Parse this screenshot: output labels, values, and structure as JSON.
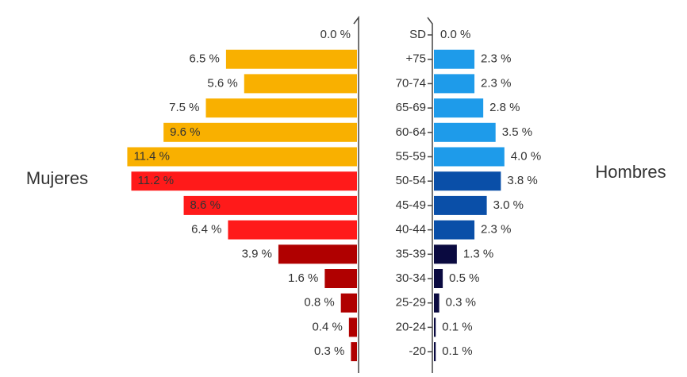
{
  "chart_data": {
    "type": "pyramid",
    "categories": [
      "SD",
      "+75",
      "70-74",
      "65-69",
      "60-64",
      "55-59",
      "50-54",
      "45-49",
      "40-44",
      "35-39",
      "30-34",
      "25-29",
      "20-24",
      "-20"
    ],
    "series": [
      {
        "name": "Mujeres",
        "side": "left",
        "values": [
          0.0,
          6.5,
          5.6,
          7.5,
          9.6,
          11.4,
          11.2,
          8.6,
          6.4,
          3.9,
          1.6,
          0.8,
          0.4,
          0.3
        ],
        "value_labels": [
          "0.0 %",
          "6.5 %",
          "5.6 %",
          "7.5 %",
          "9.6 %",
          "11.4 %",
          "11.2 %",
          "8.6 %",
          "6.4 %",
          "3.9 %",
          "1.6 %",
          "0.8 %",
          "0.4 %",
          "0.3 %"
        ],
        "colors": [
          "#f9b000",
          "#f9b000",
          "#f9b000",
          "#f9b000",
          "#f9b000",
          "#f9b000",
          "#ff1a1a",
          "#ff1a1a",
          "#ff1a1a",
          "#b00000",
          "#b00000",
          "#b00000",
          "#b00000",
          "#b00000"
        ]
      },
      {
        "name": "Hombres",
        "side": "right",
        "values": [
          0.0,
          2.3,
          2.3,
          2.8,
          3.5,
          4.0,
          3.8,
          3.0,
          2.3,
          1.3,
          0.5,
          0.3,
          0.1,
          0.1
        ],
        "value_labels": [
          "0.0 %",
          "2.3 %",
          "2.3 %",
          "2.8 %",
          "3.5 %",
          "4.0 %",
          "3.8 %",
          "3.0 %",
          "2.3 %",
          "1.3 %",
          "0.5 %",
          "0.3 %",
          "0.1 %",
          "0.1 %"
        ],
        "colors": [
          "#1e9bea",
          "#1e9bea",
          "#1e9bea",
          "#1e9bea",
          "#1e9bea",
          "#1e9bea",
          "#0a4fa8",
          "#0a4fa8",
          "#0a4fa8",
          "#0a0a40",
          "#0a0a40",
          "#0a0a40",
          "#0a0a40",
          "#0a0a40"
        ]
      }
    ]
  }
}
